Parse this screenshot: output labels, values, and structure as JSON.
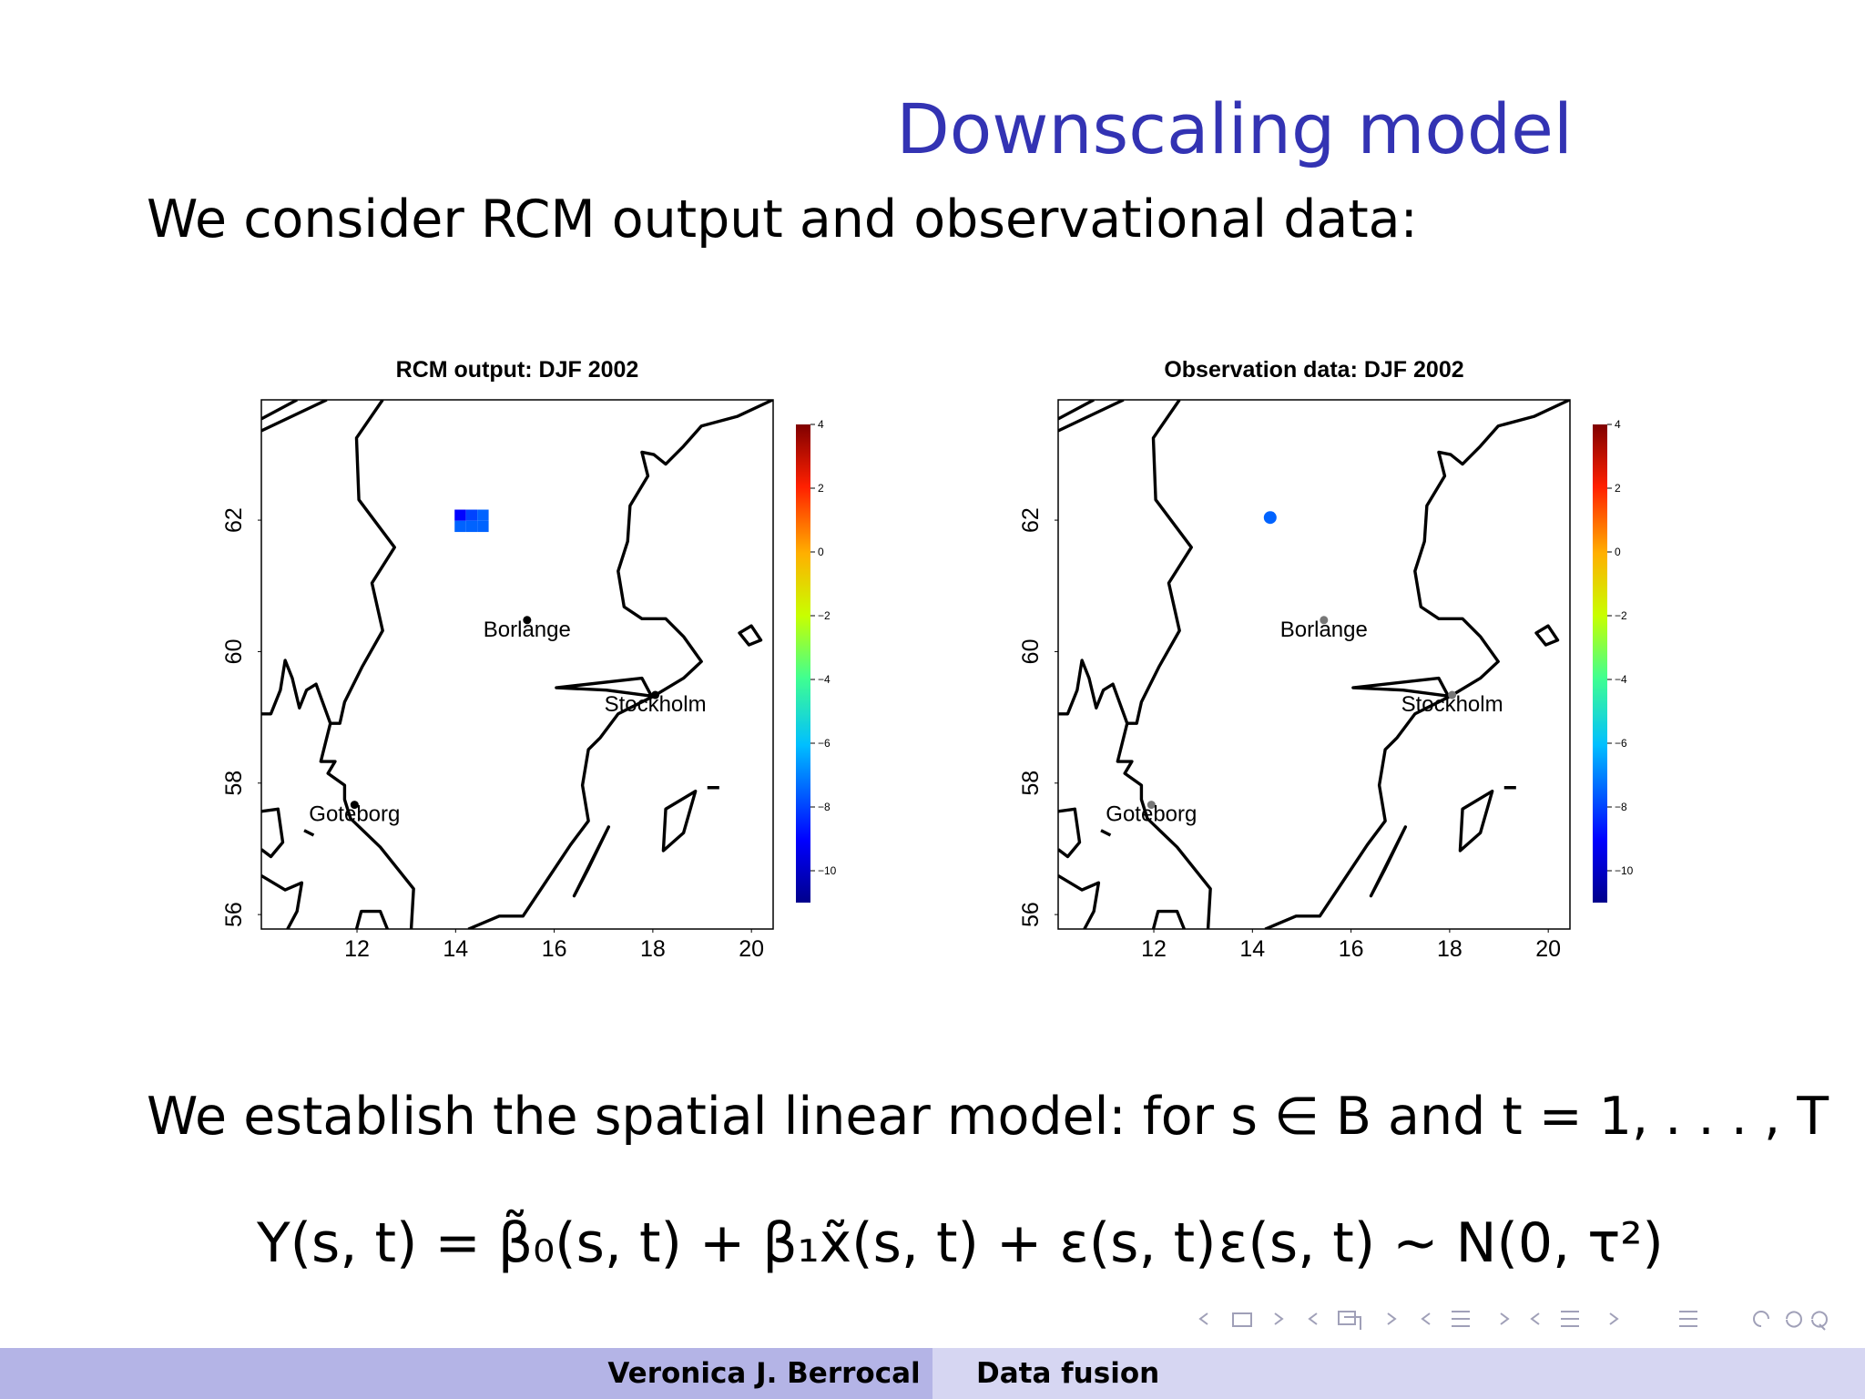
{
  "slide": {
    "title": "Downscaling model",
    "intro": "We consider RCM output and observational data:",
    "model_text": "We establish the spatial linear model: for s ∈ B and t = 1, . . . , T",
    "equation": "Y(s, t) = β̃₀(s, t) + β₁x̃(s, t) + ε(s, t)",
    "distribution": "ε(s, t) ∼ N(0, τ²)"
  },
  "maps": [
    {
      "type": "map",
      "title": "RCM output: DJF 2002",
      "xlim": [
        10.06,
        20.44
      ],
      "ylim": [
        55.78,
        63.83
      ],
      "xticks": [
        12,
        14,
        16,
        18,
        20
      ],
      "yticks": [
        56,
        58,
        60,
        62
      ],
      "color_lim": [
        -11,
        4
      ],
      "color_ticks": [
        4,
        2,
        0,
        {
          "value": -2,
          "label": "−2"
        },
        {
          "value": -4,
          "label": "−4"
        },
        {
          "value": -6,
          "label": "−6"
        },
        {
          "value": -8,
          "label": "−8"
        },
        {
          "value": -10,
          "label": "−10"
        }
      ],
      "cell_size": [
        0.23,
        0.17
      ],
      "cells": [
        {
          "lon": 13.98,
          "lat": 61.99,
          "value": -9
        },
        {
          "lon": 14.21,
          "lat": 61.99,
          "value": -8
        },
        {
          "lon": 14.44,
          "lat": 61.99,
          "value": -7.5
        },
        {
          "lon": 13.98,
          "lat": 61.82,
          "value": -7.5
        },
        {
          "lon": 14.21,
          "lat": 61.82,
          "value": -7.5
        },
        {
          "lon": 14.44,
          "lat": 61.82,
          "value": -7.5
        }
      ],
      "city_color": "#000000",
      "cities": [
        {
          "name": "Borlange",
          "lon": 15.45,
          "lat": 60.48
        },
        {
          "name": "Stockholm",
          "lon": 18.05,
          "lat": 59.34
        },
        {
          "name": "Goteborg",
          "lon": 11.95,
          "lat": 57.67
        }
      ]
    },
    {
      "type": "map",
      "title": "Observation data: DJF 2002",
      "xlim": [
        10.06,
        20.44
      ],
      "ylim": [
        55.78,
        63.83
      ],
      "xticks": [
        12,
        14,
        16,
        18,
        20
      ],
      "yticks": [
        56,
        58,
        60,
        62
      ],
      "color_lim": [
        -11,
        4
      ],
      "color_ticks": [
        4,
        2,
        0,
        {
          "value": -2,
          "label": "−2"
        },
        {
          "value": -4,
          "label": "−4"
        },
        {
          "value": -6,
          "label": "−6"
        },
        {
          "value": -8,
          "label": "−8"
        },
        {
          "value": -10,
          "label": "−10"
        }
      ],
      "points": [
        {
          "lon": 14.36,
          "lat": 62.04,
          "value": -7.5
        }
      ],
      "city_color": "#777777",
      "cities": [
        {
          "name": "Borlange",
          "lon": 15.45,
          "lat": 60.48
        },
        {
          "name": "Stockholm",
          "lon": 18.05,
          "lat": 59.34
        },
        {
          "name": "Goteborg",
          "lon": 11.95,
          "lat": 57.67
        }
      ]
    }
  ],
  "footer": {
    "author": "Veronica J. Berrocal",
    "short_title": "Data fusion"
  }
}
